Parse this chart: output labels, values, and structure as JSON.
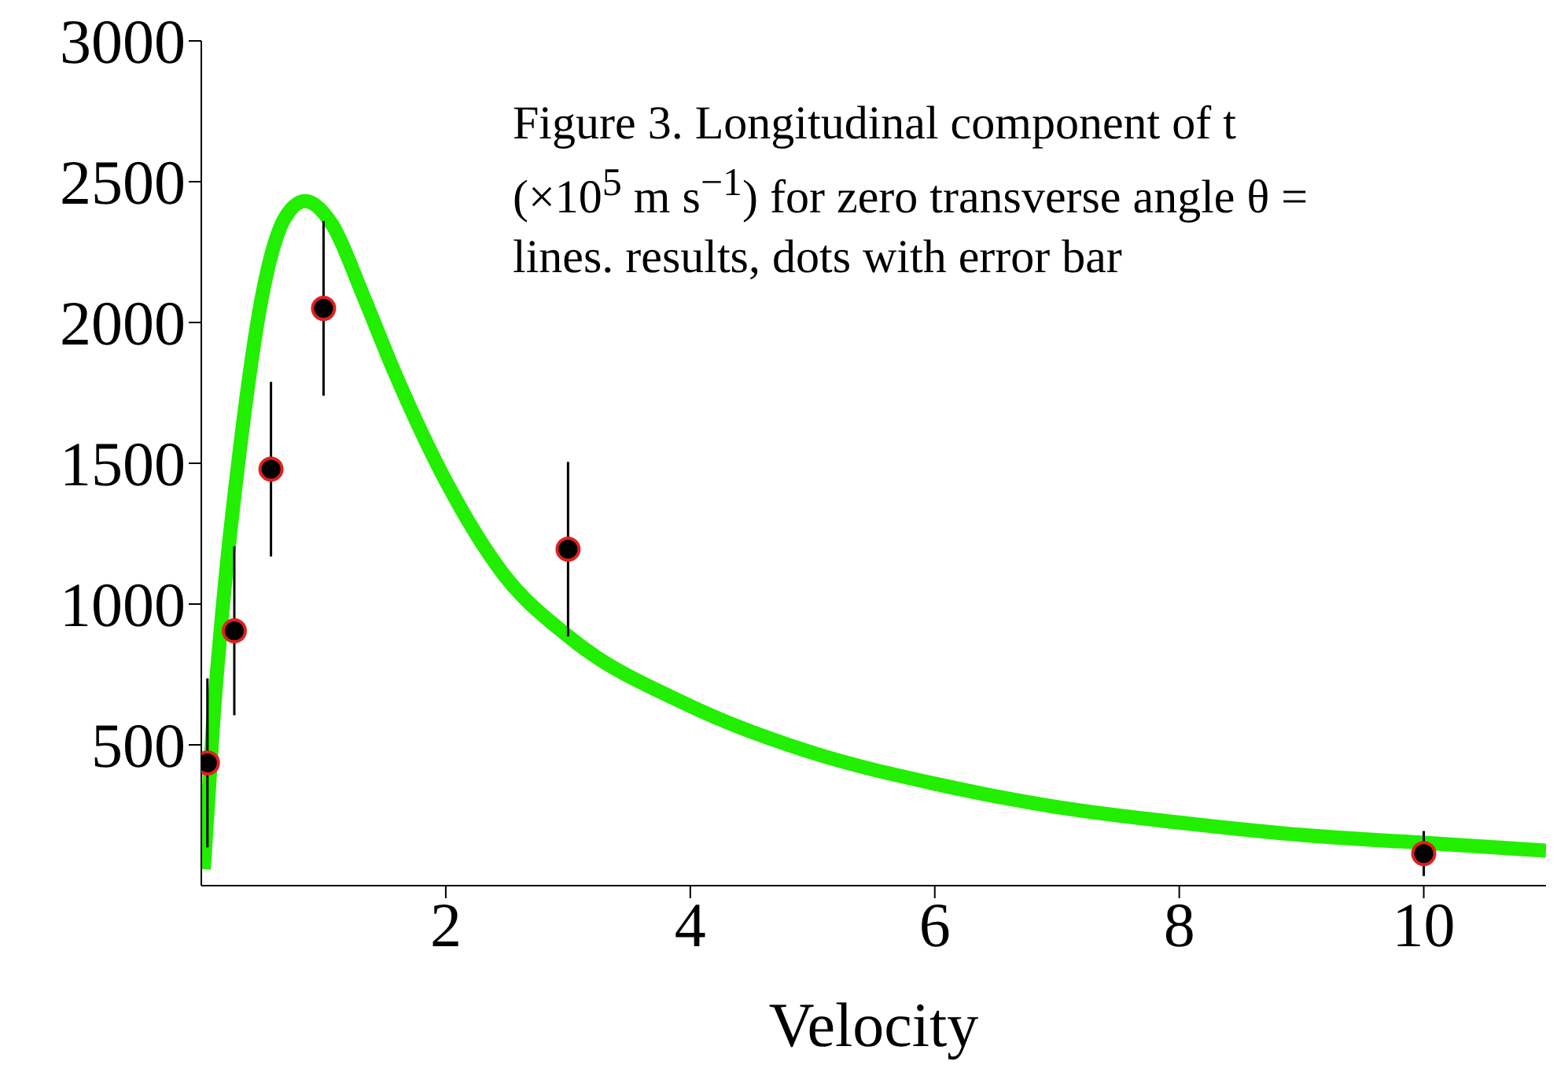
{
  "chart_data": {
    "type": "scatter",
    "xlabel": "Velocity",
    "annotations": [
      "Figure 3. Longitudinal component of t",
      "(×10$^{5}$ m s$^{−1}$) for zero transverse angle θ =",
      "lines. results, dots with error bar"
    ],
    "xlim": [
      0,
      11
    ],
    "ylim": [
      0,
      3000
    ],
    "xticks": [
      2,
      4,
      6,
      8,
      10
    ],
    "yticks": [
      500,
      1000,
      1500,
      2000,
      2500,
      3000
    ],
    "marker": "circle",
    "series": [
      {
        "type": "line",
        "color": "#22ee00",
        "marker": "none",
        "x": [
          0.02,
          0.1,
          0.2,
          0.3,
          0.5,
          0.69,
          0.85,
          1.07,
          1.32,
          1.58,
          2,
          2.47,
          3,
          4,
          5,
          6,
          7,
          8,
          9,
          10,
          11
        ],
        "values": [
          58,
          600,
          1100,
          1493,
          2100,
          2376,
          2431,
          2348,
          2100,
          1824,
          1437,
          1107,
          886,
          638,
          472,
          362,
          279,
          224,
          180,
          152,
          124
        ]
      },
      {
        "color": "#000000",
        "x": [
          0.05,
          0.27,
          0.57,
          1,
          3,
          10
        ],
        "values": [
          436,
          905,
          1479,
          2050,
          1195,
          114
        ],
        "errors": [
          300,
          300,
          310,
          310,
          310,
          80
        ]
      }
    ]
  }
}
